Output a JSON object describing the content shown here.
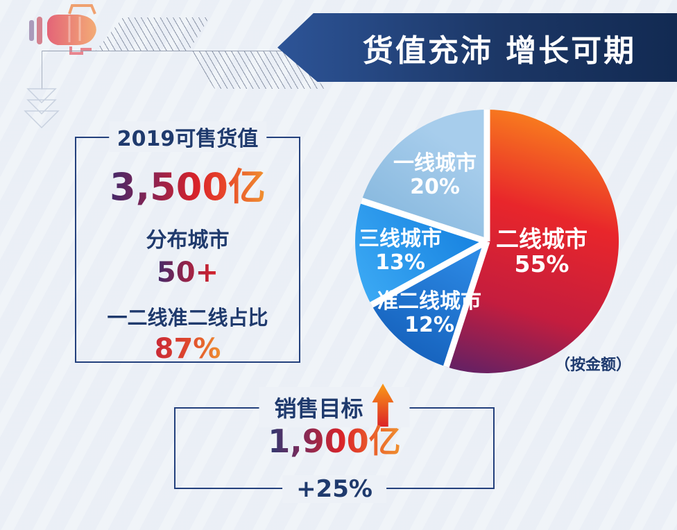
{
  "header": {
    "title": "货值充沛 增长可期"
  },
  "left_panel": {
    "title": "2019可售货值",
    "value": "3,500亿",
    "items": [
      {
        "label": "分布城市",
        "value": "50+"
      },
      {
        "label": "一二线准二线占比",
        "value": "87%"
      }
    ]
  },
  "sales_target": {
    "label": "销售目标",
    "value": "1,900亿",
    "growth": "+25%"
  },
  "chart_data": {
    "type": "pie",
    "note": "（按金额）",
    "start_angle_deg": 0,
    "direction": "clockwise",
    "slices": [
      {
        "label": "二线城市",
        "pct_label": "55%",
        "value": 55,
        "gradient": [
          "#f9821d",
          "#e8262b",
          "#c41d3e",
          "#47226f"
        ]
      },
      {
        "label": "准二线城市",
        "pct_label": "12%",
        "value": 12,
        "gradient": [
          "#2c89e4",
          "#1159b4"
        ]
      },
      {
        "label": "三线城市",
        "pct_label": "13%",
        "value": 13,
        "gradient": [
          "#1b86e2",
          "#3fadf6"
        ]
      },
      {
        "label": "一线城市",
        "pct_label": "20%",
        "value": 20,
        "gradient": [
          "#a7cdec",
          "#7eb2da"
        ]
      }
    ]
  },
  "colors": {
    "background": "#edf1f7",
    "banner_left": "#2d5497",
    "banner_right": "#122a52",
    "navy_text": "#1f3a6d",
    "accent_red": "#d92329",
    "accent_orange": "#f0922f",
    "border_navy": "#23407c"
  }
}
